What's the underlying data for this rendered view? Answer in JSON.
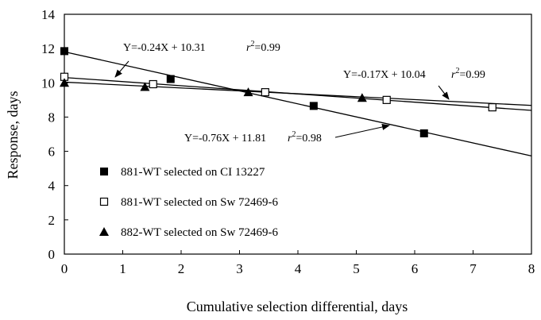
{
  "chart_data": {
    "type": "scatter",
    "title": "",
    "xlabel": "Cumulative selection differential, days",
    "ylabel": "Response, days",
    "xlim": [
      0,
      8
    ],
    "ylim": [
      0,
      14
    ],
    "xticks": [
      "0",
      "1",
      "2",
      "3",
      "4",
      "5",
      "6",
      "7",
      "8"
    ],
    "yticks": [
      "0",
      "2",
      "4",
      "6",
      "8",
      "10",
      "12",
      "14"
    ],
    "grid": false,
    "legend_position": "bottom-left",
    "series": [
      {
        "name": "881-WT selected on CI 13227",
        "marker": "square-filled",
        "x": [
          0.0,
          1.82,
          4.27,
          6.16
        ],
        "y": [
          11.85,
          10.22,
          8.65,
          7.05
        ],
        "fit": {
          "slope": -0.76,
          "intercept": 11.81
        },
        "equation": "Y=-0.76X + 11.81",
        "r2_label": "=0.98"
      },
      {
        "name": "881-WT selected on Sw 72469-6",
        "marker": "square-open",
        "x": [
          0.0,
          1.52,
          3.44,
          5.52,
          7.33
        ],
        "y": [
          10.35,
          9.92,
          9.45,
          9.0,
          8.57
        ],
        "fit": {
          "slope": -0.24,
          "intercept": 10.31
        },
        "equation": "Y=-0.24X + 10.31",
        "r2_label": "=0.99"
      },
      {
        "name": "882-WT selected on Sw 72469-6",
        "marker": "triangle-filled",
        "x": [
          0.0,
          1.38,
          3.15,
          5.1
        ],
        "y": [
          10.0,
          9.76,
          9.45,
          9.12
        ],
        "fit": {
          "slope": -0.17,
          "intercept": 10.04
        },
        "equation": "Y=-0.17X + 10.04",
        "r2_label": "=0.99"
      }
    ]
  }
}
